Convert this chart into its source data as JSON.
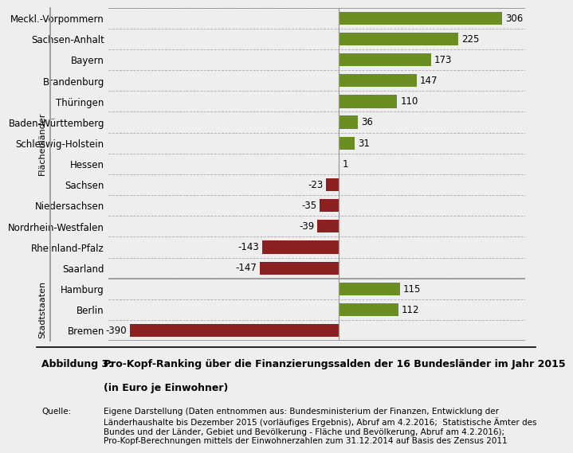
{
  "categories": [
    "Meckl.-Vorpommern",
    "Sachsen-Anhalt",
    "Bayern",
    "Brandenburg",
    "Thüringen",
    "Baden-Württemberg",
    "Schleswig-Holstein",
    "Hessen",
    "Sachsen",
    "Niedersachsen",
    "Nordrhein-Westfalen",
    "Rheinland-Pfalz",
    "Saarland",
    "Hamburg",
    "Berlin",
    "Bremen"
  ],
  "values": [
    306,
    225,
    173,
    147,
    110,
    36,
    31,
    1,
    -23,
    -35,
    -39,
    -143,
    -147,
    115,
    112,
    -390
  ],
  "color_positive": "#6b8e23",
  "color_negative": "#8b2020",
  "bg_color": "#eeeeee",
  "xlim": [
    -430,
    350
  ],
  "bar_height": 0.62,
  "title_bold": "Abbildung 3:",
  "title_main": "Pro-Kopf-Ranking über die Finanzierungssalden der 16 Bundesländer im Jahr 2015",
  "title_sub": "(in Euro je Einwohner)",
  "source_label": "Quelle:",
  "source_text": "Eigene Darstellung (Daten entnommen aus: Bundesministerium der Finanzen, Entwicklung der\nLänderhaushalte bis Dezember 2015 (vorläufiges Ergebnis), Abruf am 4.2.2016;  Statistische Ämter des\nBundes und der Länder, Gebiet und Bevölkerung - Fläche und Bevölkerung, Abruf am 4.2.2016);\nPro-Kopf-Berechnungen mittels der Einwohnerzahlen zum 31.12.2014 auf Basis des Zensus 2011",
  "flaeche_label": "Flächenländer",
  "stadt_label": "Stadtstaaten",
  "separator_color": "#999999",
  "dashed_color": "#aaaaaa"
}
